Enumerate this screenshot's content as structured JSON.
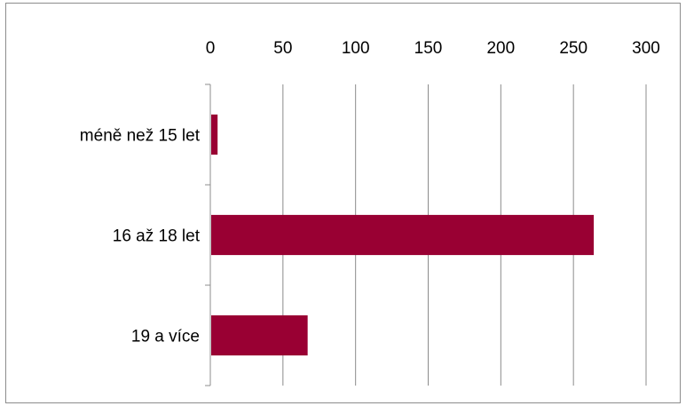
{
  "chart_data": {
    "type": "bar",
    "orientation": "horizontal",
    "categories": [
      "méně než 15 let",
      "16 až 18 let",
      "19 a více"
    ],
    "values": [
      5,
      264,
      67
    ],
    "xlim": [
      0,
      300
    ],
    "x_ticks": [
      0,
      50,
      100,
      150,
      200,
      250,
      300
    ],
    "x_axis_position": "top",
    "grid": true,
    "legend": "none",
    "colors": {
      "bar": "#990033",
      "grid": "#8c8c8c",
      "axis": "#8c8c8c",
      "border": "#8c8c8c"
    }
  }
}
